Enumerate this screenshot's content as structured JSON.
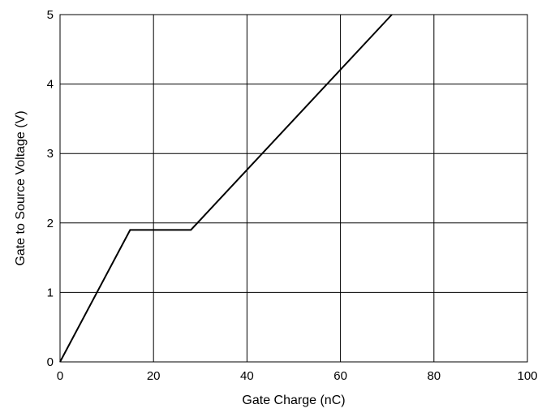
{
  "chart_data": {
    "type": "line",
    "title": "",
    "xlabel": "Gate Charge (nC)",
    "ylabel": "Gate to Source Voltage (V)",
    "xlim": [
      0,
      100
    ],
    "ylim": [
      0,
      5
    ],
    "x_ticks": [
      0,
      20,
      40,
      60,
      80,
      100
    ],
    "y_ticks": [
      0,
      1,
      2,
      3,
      4,
      5
    ],
    "grid": true,
    "legend": "none",
    "line_color": "#000000",
    "series": [
      {
        "x": [
          0,
          15,
          28,
          71
        ],
        "y": [
          0,
          1.9,
          1.9,
          5
        ]
      }
    ]
  }
}
